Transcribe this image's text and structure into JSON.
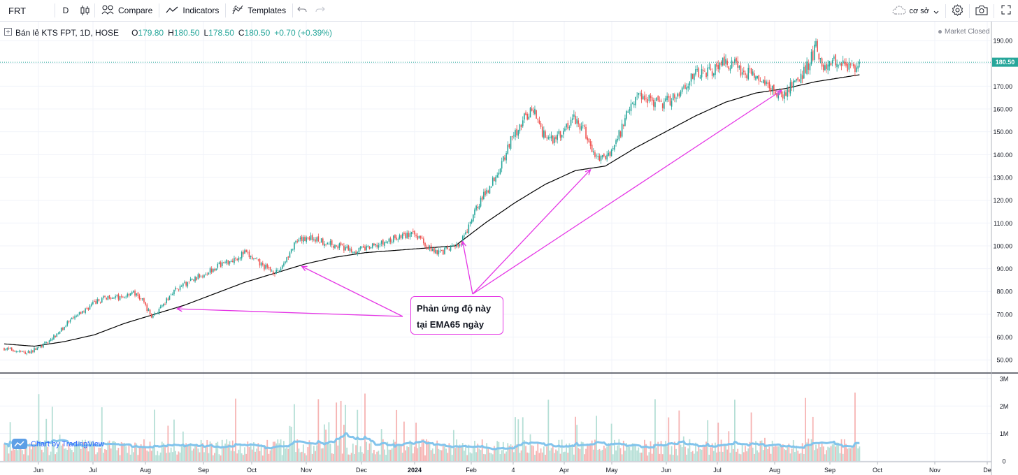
{
  "toolbar": {
    "symbol": "FRT",
    "interval": "D",
    "compare_label": "Compare",
    "indicators_label": "Indicators",
    "templates_label": "Templates",
    "layout_name": "cơ sở"
  },
  "legend": {
    "symbol_desc": "Bán lẻ KTS FPT, 1D, HOSE",
    "o_label": "O",
    "o": "179.80",
    "h_label": "H",
    "h": "180.50",
    "l_label": "L",
    "l": "178.50",
    "c_label": "C",
    "c": "180.50",
    "change": "+0.70 (+0.39%)"
  },
  "market_status": "Market Closed",
  "annotation": {
    "line1": "Phản ứng độ này",
    "line2": "tại EMA65 ngày"
  },
  "watermark": "Chart by TradingView",
  "colors": {
    "up": "#26a69a",
    "down": "#ef5350",
    "ema": "#000000",
    "volume_ma": "#82c4ec",
    "annotation": "#e536e5",
    "last_price_bg": "#26a69a"
  },
  "chart_data": {
    "type": "candlestick",
    "price_axis": {
      "ticks": [
        "190.00",
        "180.00",
        "170.00",
        "160.00",
        "150.00",
        "140.00",
        "130.00",
        "120.00",
        "110.00",
        "100.00",
        "90.00",
        "80.00",
        "70.00",
        "60.00",
        "50.00"
      ],
      "range": [
        47,
        194
      ],
      "last_price_label": "180.50",
      "last_price": 180.5
    },
    "volume_axis": {
      "ticks": [
        "3M",
        "2M",
        "1M",
        "0"
      ],
      "range": [
        0,
        3100000
      ]
    },
    "time_axis": {
      "labels": [
        "Jun",
        "Jul",
        "Aug",
        "Sep",
        "Oct",
        "Nov",
        "Dec",
        "2024",
        "Feb",
        "4",
        "Apr",
        "May",
        "Jun",
        "Jul",
        "Aug",
        "Sep",
        "Oct",
        "Nov",
        "De"
      ]
    },
    "price_path": [
      [
        0,
        55
      ],
      [
        15,
        53
      ],
      [
        25,
        56
      ],
      [
        33,
        60
      ],
      [
        42,
        66
      ],
      [
        52,
        71
      ],
      [
        60,
        75
      ],
      [
        70,
        78
      ],
      [
        78,
        77
      ],
      [
        85,
        80
      ],
      [
        92,
        76
      ],
      [
        98,
        69
      ],
      [
        105,
        73
      ],
      [
        112,
        80
      ],
      [
        120,
        83
      ],
      [
        128,
        86
      ],
      [
        136,
        89
      ],
      [
        144,
        92
      ],
      [
        152,
        94
      ],
      [
        160,
        97
      ],
      [
        168,
        93
      ],
      [
        175,
        90
      ],
      [
        182,
        88
      ],
      [
        188,
        95
      ],
      [
        194,
        101
      ],
      [
        202,
        104
      ],
      [
        212,
        102
      ],
      [
        222,
        100
      ],
      [
        232,
        98
      ],
      [
        242,
        99
      ],
      [
        252,
        101
      ],
      [
        262,
        104
      ],
      [
        270,
        105
      ],
      [
        276,
        104
      ],
      [
        283,
        99
      ],
      [
        290,
        97
      ],
      [
        297,
        99
      ],
      [
        303,
        100
      ],
      [
        309,
        108
      ],
      [
        315,
        118
      ],
      [
        322,
        125
      ],
      [
        330,
        135
      ],
      [
        337,
        146
      ],
      [
        345,
        155
      ],
      [
        352,
        160
      ],
      [
        358,
        150
      ],
      [
        365,
        147
      ],
      [
        372,
        150
      ],
      [
        379,
        156
      ],
      [
        386,
        150
      ],
      [
        392,
        140
      ],
      [
        398,
        138
      ],
      [
        404,
        142
      ],
      [
        410,
        150
      ],
      [
        416,
        162
      ],
      [
        422,
        166
      ],
      [
        428,
        165
      ],
      [
        436,
        162
      ],
      [
        443,
        164
      ],
      [
        450,
        168
      ],
      [
        457,
        174
      ],
      [
        464,
        176
      ],
      [
        471,
        177
      ],
      [
        478,
        180
      ],
      [
        485,
        180
      ],
      [
        492,
        176
      ],
      [
        499,
        175
      ],
      [
        506,
        170
      ],
      [
        512,
        168
      ],
      [
        518,
        166
      ],
      [
        524,
        170
      ],
      [
        530,
        174
      ],
      [
        536,
        181
      ],
      [
        540,
        187
      ],
      [
        546,
        177
      ],
      [
        552,
        181
      ],
      [
        558,
        180
      ],
      [
        564,
        178
      ],
      [
        569,
        180
      ]
    ],
    "ema_path": [
      [
        0,
        57
      ],
      [
        20,
        56
      ],
      [
        40,
        58
      ],
      [
        60,
        61
      ],
      [
        80,
        66
      ],
      [
        100,
        70
      ],
      [
        120,
        74
      ],
      [
        140,
        79
      ],
      [
        160,
        84
      ],
      [
        180,
        88
      ],
      [
        200,
        92
      ],
      [
        220,
        95
      ],
      [
        240,
        97
      ],
      [
        260,
        98
      ],
      [
        280,
        99
      ],
      [
        300,
        100
      ],
      [
        320,
        110
      ],
      [
        340,
        119
      ],
      [
        360,
        127
      ],
      [
        380,
        133
      ],
      [
        400,
        135
      ],
      [
        420,
        143
      ],
      [
        440,
        150
      ],
      [
        460,
        157
      ],
      [
        480,
        163
      ],
      [
        500,
        167
      ],
      [
        520,
        169
      ],
      [
        540,
        172
      ],
      [
        569,
        175
      ]
    ],
    "annotated_touch_bars": [
      115,
      198,
      305,
      390,
      517
    ]
  }
}
